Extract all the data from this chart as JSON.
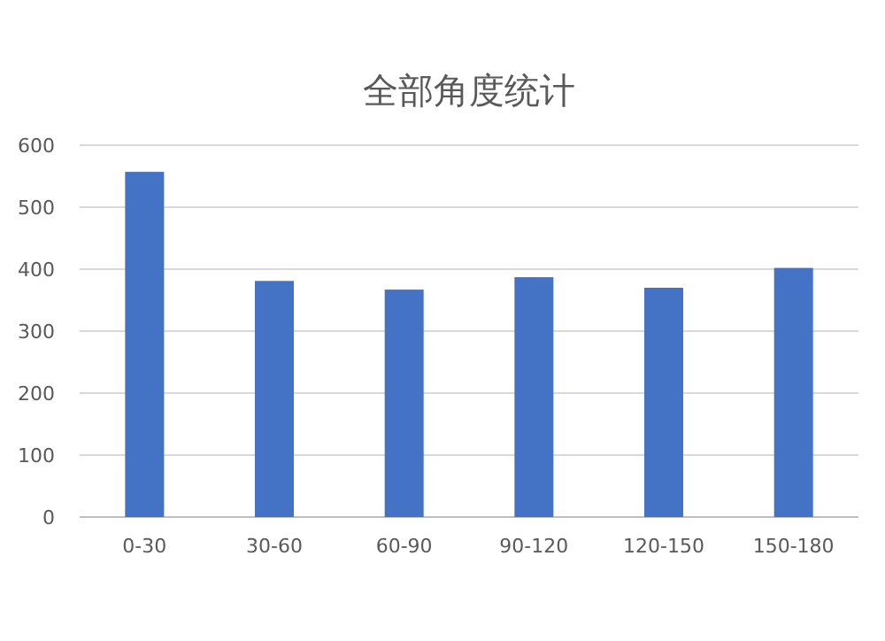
{
  "chart_data": {
    "type": "bar",
    "title": "全部角度统计",
    "categories": [
      "0-30",
      "30-60",
      "60-90",
      "90-120",
      "120-150",
      "150-180"
    ],
    "values": [
      557,
      381,
      367,
      387,
      370,
      402
    ],
    "color": "#4472c4",
    "ylim": [
      0,
      600
    ],
    "yticks": [
      0,
      100,
      200,
      300,
      400,
      500,
      600
    ],
    "grid": "y"
  }
}
